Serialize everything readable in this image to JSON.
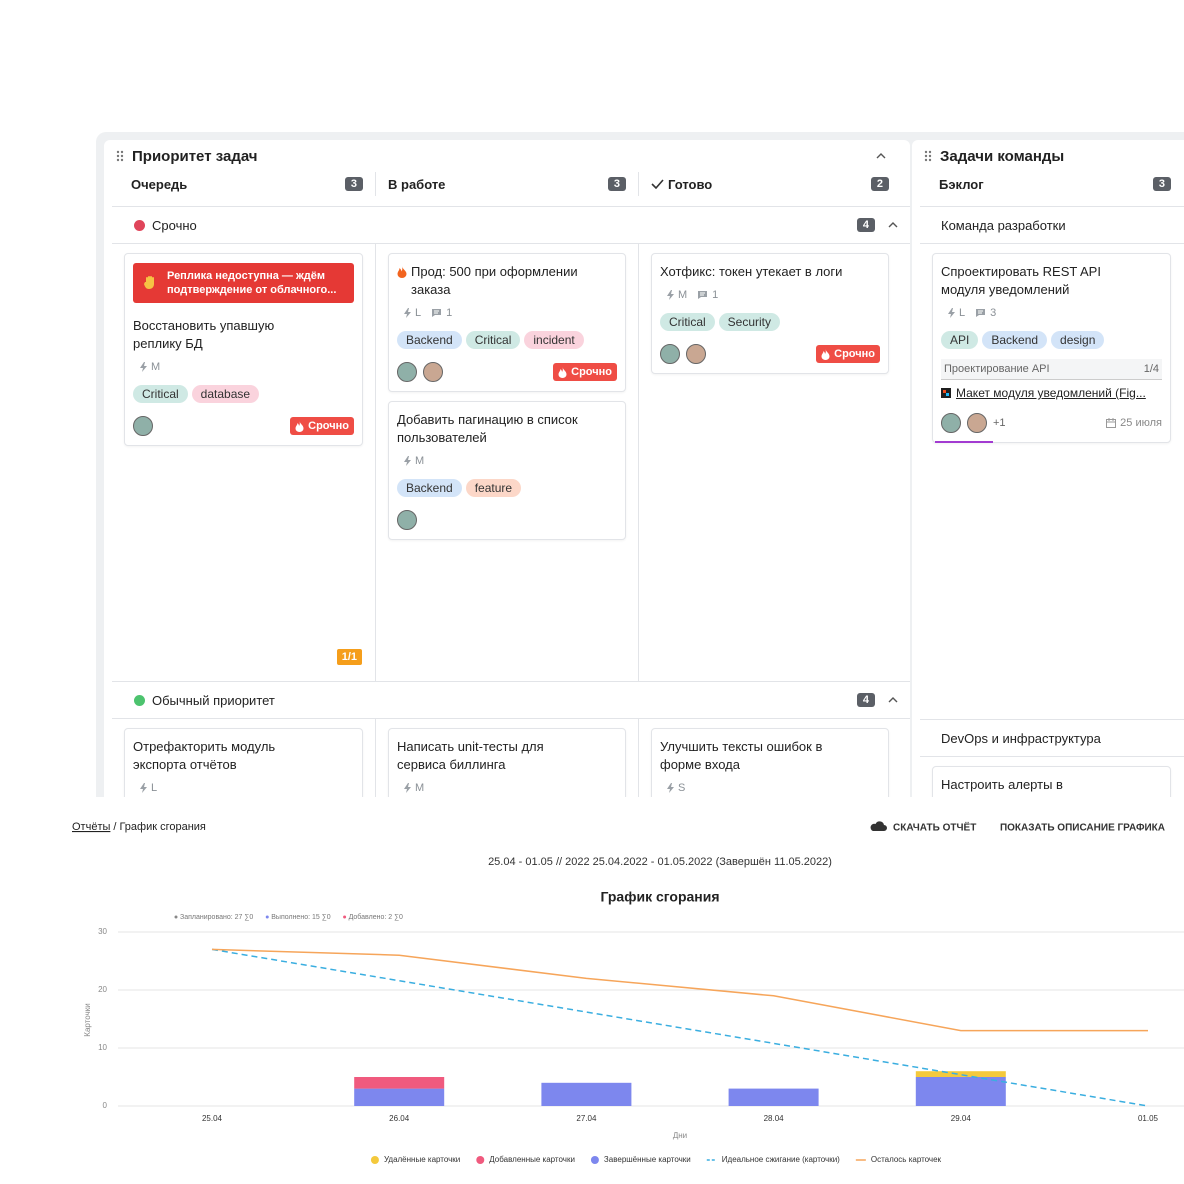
{
  "board": {
    "panels": [
      {
        "title": "Приоритет задач",
        "columns": [
          {
            "name": "Очередь",
            "count": 3
          },
          {
            "name": "В работе",
            "count": 3
          },
          {
            "name": "Готово",
            "count": 2
          }
        ],
        "groups": [
          {
            "name": "Срочно",
            "count": 4,
            "color": "#e0455a",
            "pager": "1/1",
            "columns": [
              [
                {
                  "alert": "Реплика недоступна — ждём подтверждение от облачного...",
                  "title": "Восстановить упавшую реплику БД",
                  "size": "M",
                  "tags": [
                    {
                      "text": "Critical",
                      "color": "#cfe9e4"
                    },
                    {
                      "text": "database",
                      "color": "#fad3dd"
                    }
                  ],
                  "badge": "Срочно"
                }
              ],
              [
                {
                  "title": "Прод: 500 при оформлении заказа",
                  "size": "L",
                  "comments": 1,
                  "tags": [
                    {
                      "text": "Backend",
                      "color": "#d3e4f8"
                    },
                    {
                      "text": "Critical",
                      "color": "#cfe9e4"
                    },
                    {
                      "text": "incident",
                      "color": "#fad3dd"
                    }
                  ],
                  "badge": "Срочно"
                },
                {
                  "title": "Добавить пагинацию в список пользователей",
                  "size": "M",
                  "tags": [
                    {
                      "text": "Backend",
                      "color": "#d3e4f8"
                    },
                    {
                      "text": "feature",
                      "color": "#fcd7c8"
                    }
                  ]
                }
              ],
              [
                {
                  "title": "Хотфикс: токен утекает в логи",
                  "size": "M",
                  "comments": 1,
                  "tags": [
                    {
                      "text": "Critical",
                      "color": "#cfe9e4"
                    },
                    {
                      "text": "Security",
                      "color": "#cfe9e4"
                    }
                  ],
                  "badge": "Срочно"
                }
              ]
            ]
          },
          {
            "name": "Обычный приоритет",
            "count": 4,
            "color": "#4cc36e",
            "columns": [
              [
                {
                  "title": "Отрефакторить модуль экспорта отчётов",
                  "size": "L"
                }
              ],
              [
                {
                  "title": "Написать unit-тесты для сервиса биллинга",
                  "size": "M"
                }
              ],
              [
                {
                  "title": "Улучшить тексты ошибок в форме входа",
                  "size": "S"
                }
              ]
            ]
          }
        ]
      },
      {
        "title": "Задачи команды",
        "columns": [
          {
            "name": "Бэклог",
            "count": 3
          }
        ],
        "groups": [
          {
            "name": "Команда разработки",
            "columns": [
              [
                {
                  "title": "Спроектировать REST API модуля уведомлений",
                  "size": "L",
                  "comments": 3,
                  "tags": [
                    {
                      "text": "API",
                      "color": "#cfe9e4"
                    },
                    {
                      "text": "Backend",
                      "color": "#d3e4f8"
                    },
                    {
                      "text": "design",
                      "color": "#d3e4f8"
                    }
                  ],
                  "subtask": "Проектирование API",
                  "progress": "1/4",
                  "link": "Макет модуля уведомлений (Fig...",
                  "more": "+1",
                  "date": "25 июля"
                }
              ]
            ]
          },
          {
            "name": "DevOps и инфраструктура",
            "columns": [
              [
                {
                  "title": "Настроить алерты в"
                }
              ]
            ]
          }
        ]
      }
    ]
  },
  "report": {
    "breadcrumb": {
      "link": "Отчёты",
      "separator": "/",
      "current": "График сгорания"
    },
    "actions": [
      "СКАЧАТЬ ОТЧЁТ",
      "ПОКАЗАТЬ ОПИСАНИЕ ГРАФИКА"
    ]
  },
  "chart_data": {
    "type": "bar",
    "stacked": true,
    "title": "График сгорания",
    "subtitle": "25.04 - 01.05 // 2022 25.04.2022 - 01.05.2022 (Завершён 11.05.2022)",
    "stats": [
      {
        "text": "Запланировано: 27 ∑0",
        "color": "#888888"
      },
      {
        "text": "Выполнено: 15 ∑0",
        "color": "#7d87ee"
      },
      {
        "text": "Добавлено: 2 ∑0",
        "color": "#f05a7e"
      }
    ],
    "xlabel": "Дни",
    "ylabel": "Карточки",
    "categories": [
      "25.04",
      "26.04",
      "27.04",
      "28.04",
      "29.04",
      "01.05"
    ],
    "ylim": [
      0,
      30
    ],
    "yticks": [
      0,
      10,
      20,
      30
    ],
    "grid": true,
    "series": [
      {
        "name": "Удалённые карточки",
        "color": "#f4c93c",
        "type": "bar",
        "values": [
          0,
          0,
          0,
          0,
          1,
          0
        ]
      },
      {
        "name": "Добавленные карточки",
        "color": "#f05a7e",
        "type": "bar",
        "values": [
          0,
          2,
          0,
          0,
          0,
          0
        ]
      },
      {
        "name": "Завершённые карточки",
        "color": "#7d87ee",
        "type": "bar",
        "values": [
          0,
          3,
          4,
          3,
          5,
          0
        ]
      },
      {
        "name": "Идеальное сжигание (карточки)",
        "color": "#3aaee0",
        "type": "line",
        "dash": true,
        "values": [
          27,
          21.6,
          16.2,
          10.8,
          5.4,
          0
        ]
      },
      {
        "name": "Осталось карточек",
        "color": "#f6a55a",
        "type": "line",
        "values": [
          27,
          26,
          22,
          19,
          13,
          13
        ]
      }
    ]
  }
}
